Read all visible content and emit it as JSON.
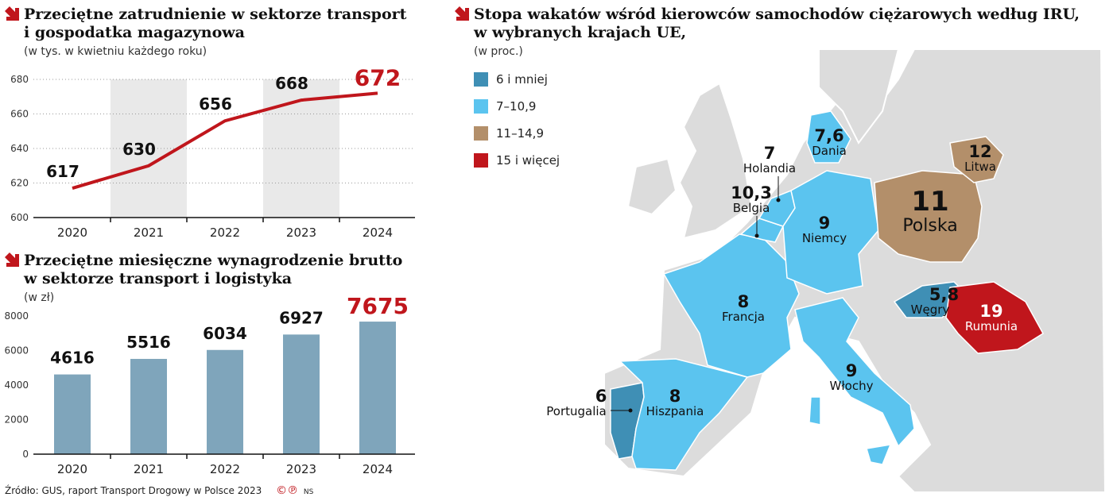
{
  "colors": {
    "accent": "#c0161c",
    "bar": "#7fa5bb",
    "band": "#e9e9e9",
    "land": "#dcdcdc"
  },
  "chart1": {
    "title_line1": "Przeciętne zatrudnienie w sektorze transport",
    "title_line2": "i gospodatka magazynowa",
    "subtitle": "(w tys. w kwietniu każdego roku)"
  },
  "chart2": {
    "title_line1": "Przeciętne miesięczne wynagrodzenie brutto",
    "title_line2": "w sektorze transport i logistyka",
    "subtitle": "(w zł)"
  },
  "chart_data": [
    {
      "type": "line",
      "categories": [
        "2020",
        "2021",
        "2022",
        "2023",
        "2024"
      ],
      "values": [
        617,
        630,
        656,
        668,
        672
      ],
      "data_labels": [
        "617",
        "630",
        "656",
        "668",
        "672"
      ],
      "ylim": [
        600,
        680
      ],
      "yticks": [
        600,
        620,
        640,
        660,
        680
      ],
      "grid": true,
      "color": "#c0161c"
    },
    {
      "type": "bar",
      "categories": [
        "2020",
        "2021",
        "2022",
        "2023",
        "2024"
      ],
      "values": [
        4616,
        5516,
        6034,
        6927,
        7675
      ],
      "data_labels": [
        "4616",
        "5516",
        "6034",
        "6927",
        "7675"
      ],
      "ylim": [
        0,
        8000
      ],
      "yticks": [
        0,
        2000,
        4000,
        6000,
        8000
      ],
      "grid": false,
      "color": "#7fa5bb"
    }
  ],
  "map": {
    "title_line1": "Stopa wakatów wśród kierowców samochodów ciężarowych według IRU,",
    "title_line2": "w wybranych krajach UE,",
    "subtitle": "(w proc.)",
    "legend": [
      {
        "label": "6 i mniej",
        "color": "#3f8fb5"
      },
      {
        "label": "7–10,9",
        "color": "#5bc4ef"
      },
      {
        "label": "11–14,9",
        "color": "#b38f6a"
      },
      {
        "label": "15 i więcej",
        "color": "#c0161c"
      }
    ],
    "countries": [
      {
        "name": "Dania",
        "value": "7,6"
      },
      {
        "name": "Holandia",
        "value": "7"
      },
      {
        "name": "Belgia",
        "value": "10,3"
      },
      {
        "name": "Niemcy",
        "value": "9"
      },
      {
        "name": "Polska",
        "value": "11"
      },
      {
        "name": "Litwa",
        "value": "12"
      },
      {
        "name": "Francja",
        "value": "8"
      },
      {
        "name": "Węgry",
        "value": "5,8"
      },
      {
        "name": "Rumunia",
        "value": "19"
      },
      {
        "name": "Włochy",
        "value": "9"
      },
      {
        "name": "Portugalia",
        "value": "6"
      },
      {
        "name": "Hiszpania",
        "value": "8"
      }
    ]
  },
  "footer": {
    "source": "Źródło: GUS, raport Transport Drogowy w Polsce 2023",
    "credit_icons": "©℗",
    "credit": "NS"
  }
}
